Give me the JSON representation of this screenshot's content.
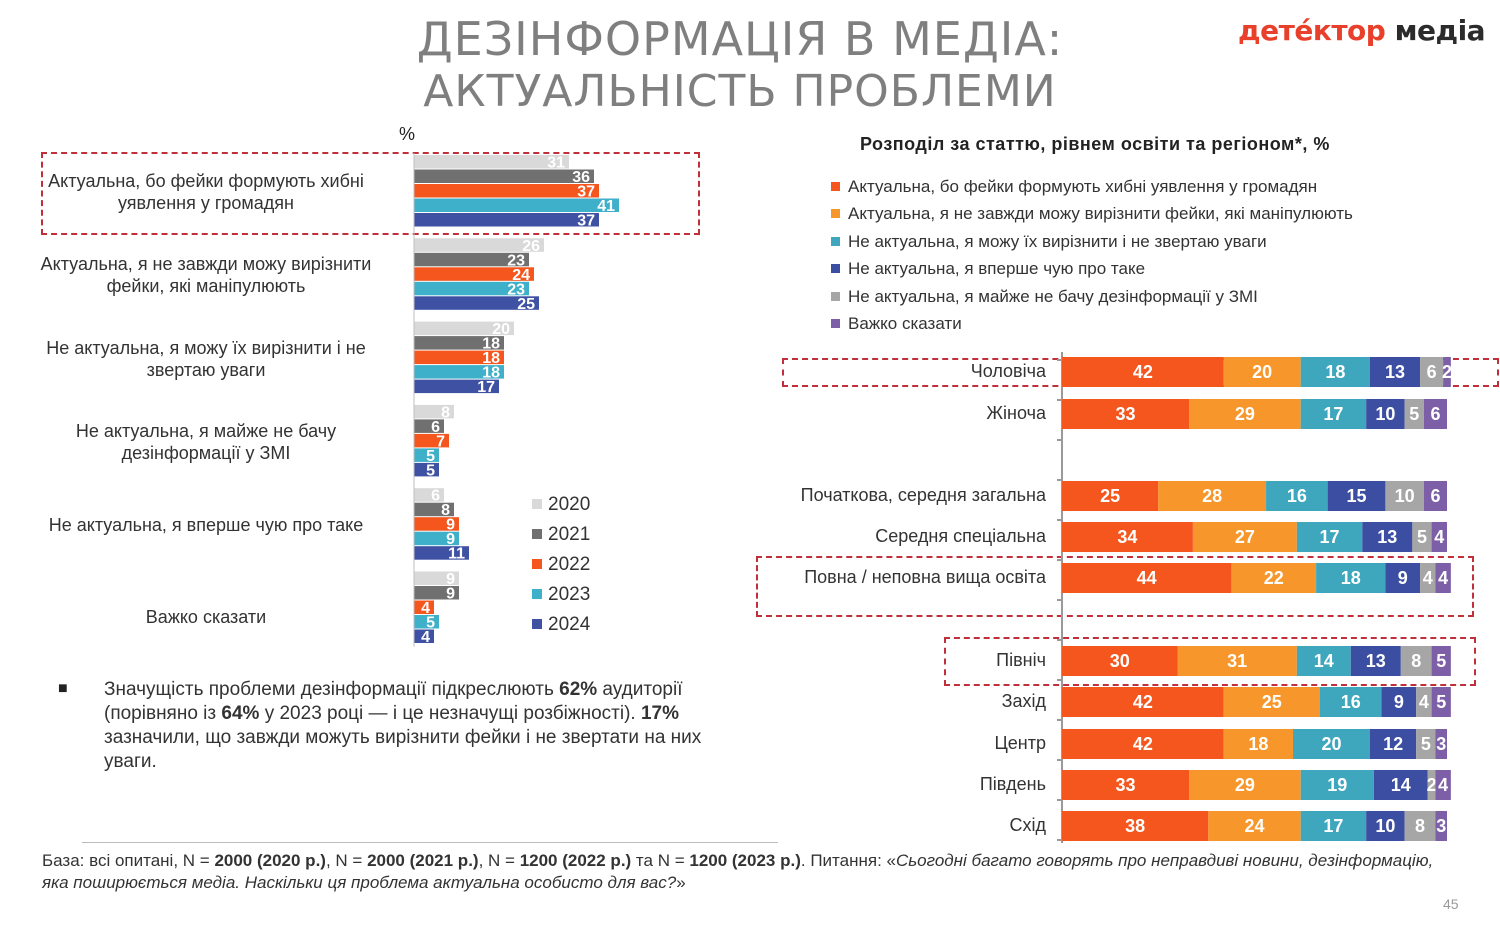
{
  "header": {
    "title_line1": "ДЕЗІНФОРМАЦІЯ В МЕДІА:",
    "title_line2": "АКТУАЛЬНІСТЬ ПРОБЛЕМИ",
    "logo_part1": "детéктор",
    "logo_part2": "медіа"
  },
  "colors": {
    "y2020": "#d9d9d9",
    "y2021": "#707070",
    "y2022": "#f4561d",
    "y2023": "#3fb0c9",
    "y2024": "#3f51a3",
    "c1": "#f4561d",
    "c2": "#f7962a",
    "c3": "#3fa7bd",
    "c4": "#3c4ea1",
    "c5": "#a6a6a6",
    "c6": "#7c5fa6",
    "highlight": "#c0303a"
  },
  "left_unit": "%",
  "chart_data": [
    {
      "type": "bar",
      "orientation": "horizontal",
      "categories": [
        "Актуальна, бо фейки формують хибні уявлення у громадян",
        "Актуальна, я не завжди можу вирізнити фейки, які маніпулюють",
        "Не актуальна, я можу їх вирізнити і не звертаю уваги",
        "Не актуальна, я майже не бачу дезінформації у ЗМІ",
        "Не актуальна, я вперше чую про таке",
        "Важко сказати"
      ],
      "series": [
        {
          "name": "2020",
          "values": [
            31,
            26,
            20,
            8,
            6,
            9
          ]
        },
        {
          "name": "2021",
          "values": [
            36,
            23,
            18,
            6,
            8,
            9
          ]
        },
        {
          "name": "2022",
          "values": [
            37,
            24,
            18,
            7,
            9,
            4
          ]
        },
        {
          "name": "2023",
          "values": [
            41,
            23,
            18,
            5,
            9,
            5
          ]
        },
        {
          "name": "2024",
          "values": [
            37,
            25,
            17,
            5,
            11,
            4
          ]
        }
      ],
      "legend_position": "right"
    },
    {
      "type": "bar",
      "orientation": "horizontal",
      "stacked": true,
      "title": "Розподіл за статтю, рівнем освіти та регіоном*, %",
      "series_names": [
        "Актуальна, бо фейки формують хибні уявлення у громадян",
        "Актуальна, я не завжди можу вирізнити фейки, які маніпулюють",
        "Не актуальна, я можу їх вирізнити і не звертаю уваги",
        "Не актуальна, я вперше чую про таке",
        "Не актуальна, я майже не бачу дезінформації у ЗМІ",
        "Важко сказати"
      ],
      "rows": [
        {
          "label": "Чоловіча",
          "values": [
            42,
            20,
            18,
            13,
            6,
            2
          ],
          "highlighted": true
        },
        {
          "label": "Жіноча",
          "values": [
            33,
            29,
            17,
            10,
            5,
            6
          ],
          "highlighted": false
        },
        {
          "label": "Початкова, середня загальна",
          "values": [
            25,
            28,
            16,
            15,
            10,
            6
          ],
          "highlighted": false
        },
        {
          "label": "Середня спеціальна",
          "values": [
            34,
            27,
            17,
            13,
            5,
            4
          ],
          "highlighted": false
        },
        {
          "label": "Повна / неповна вища освіта",
          "values": [
            44,
            22,
            18,
            9,
            4,
            4
          ],
          "highlighted": true
        },
        {
          "label": "Північ",
          "values": [
            30,
            31,
            14,
            13,
            8,
            5
          ],
          "highlighted": true
        },
        {
          "label": "Захід",
          "values": [
            42,
            25,
            16,
            9,
            4,
            5
          ],
          "highlighted": false
        },
        {
          "label": "Центр",
          "values": [
            42,
            18,
            20,
            12,
            5,
            3
          ],
          "highlighted": false
        },
        {
          "label": "Південь",
          "values": [
            33,
            29,
            19,
            14,
            2,
            4
          ],
          "highlighted": false
        },
        {
          "label": "Схід",
          "values": [
            38,
            24,
            17,
            10,
            8,
            3
          ],
          "highlighted": false
        }
      ],
      "legend_position": "top"
    }
  ],
  "note": {
    "bullet": "■",
    "p1": "Значущість проблеми дезінформації підкреслюють ",
    "b1": "62%",
    "p2": " аудиторії (порівняно із ",
    "b2": "64%",
    "p3": " у 2023 році — і це незначущі розбіжності). ",
    "b3": "17%",
    "p4": " зазначили, що завжди можуть вирізнити фейки і не звертати на них уваги."
  },
  "base": {
    "p1": "База: всі опитані, N = ",
    "b1": "2000 (2020 р.)",
    "p2": ", N = ",
    "b2": "2000 (2021 р.)",
    "p3": ", N = ",
    "b3": "1200 (2022 р.)",
    "p4": " та N = ",
    "b4": "1200 (2023 р.)",
    "p5": ". Питання: «",
    "i1": "Сьогодні багато говорять про неправдиві новини, дезінформацію, яка поширюється медіа. Наскільки ця проблема актуальна особисто для вас?",
    "p6": "»"
  },
  "page_number": "45"
}
